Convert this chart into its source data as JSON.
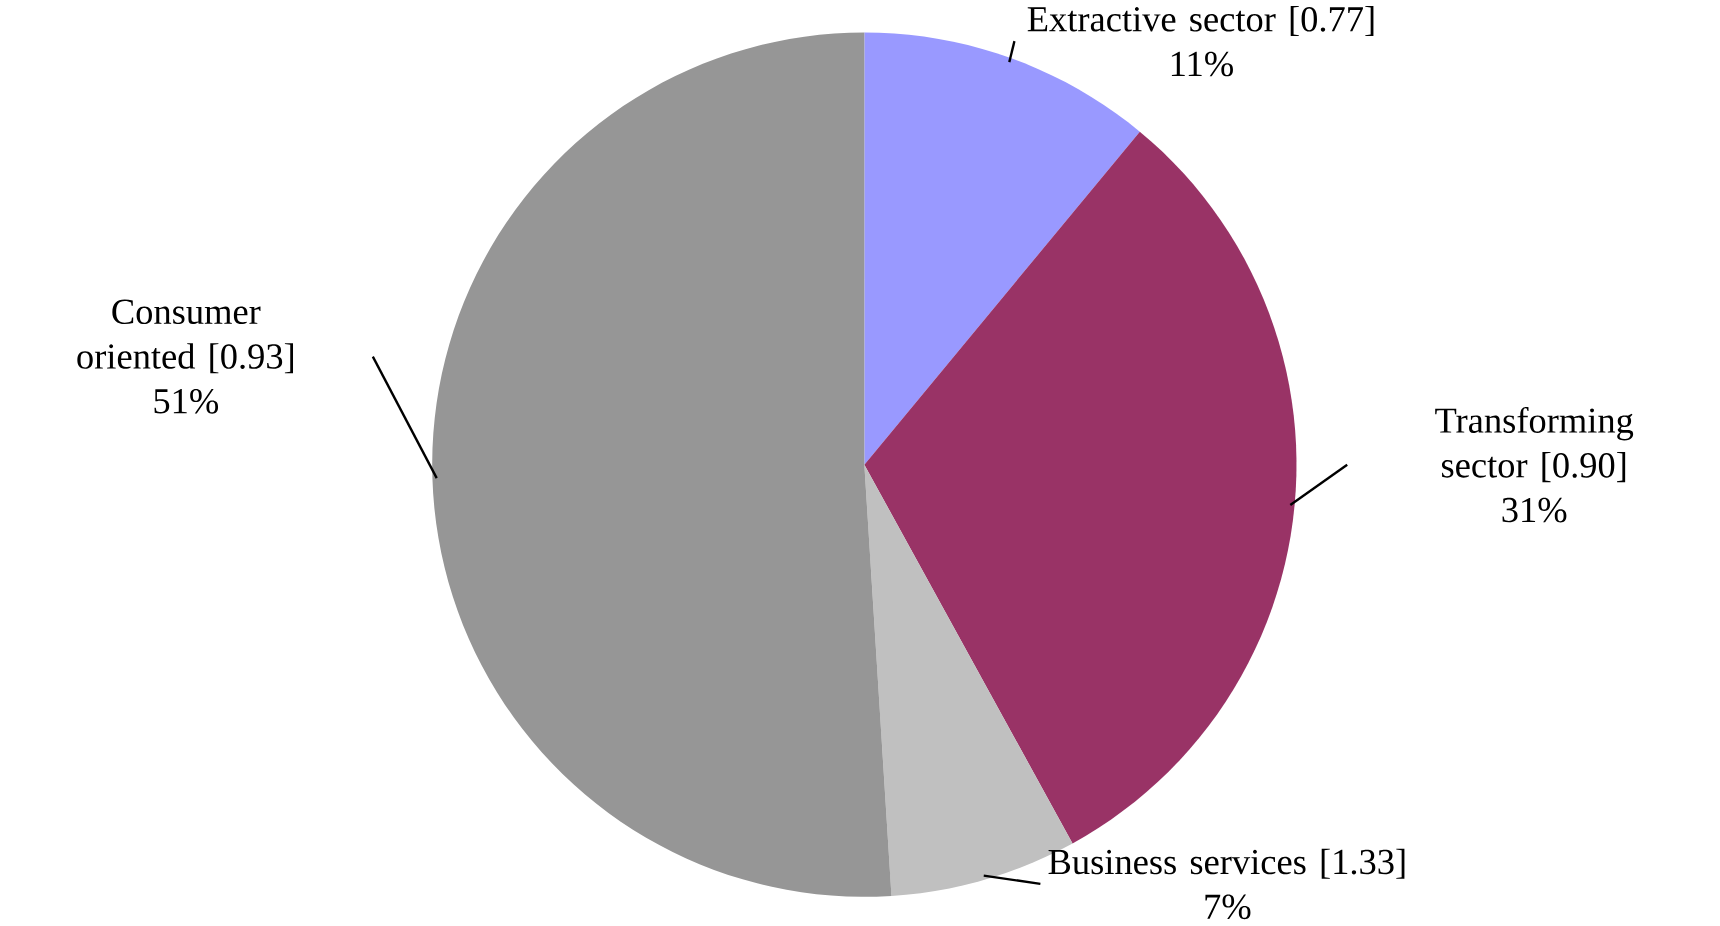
{
  "chart_data": {
    "type": "pie",
    "categories": [
      "Extractive sector [0.77]",
      "Transforming sector [0.90]",
      "Business services [1.33]",
      "Consumer oriented [0.93]"
    ],
    "values": [
      11,
      31,
      7,
      51
    ],
    "colors": [
      "#9999ff",
      "#993366",
      "#c0c0c0",
      "#969696"
    ],
    "value_labels": [
      "11%",
      "31%",
      "7%",
      "51%"
    ]
  }
}
